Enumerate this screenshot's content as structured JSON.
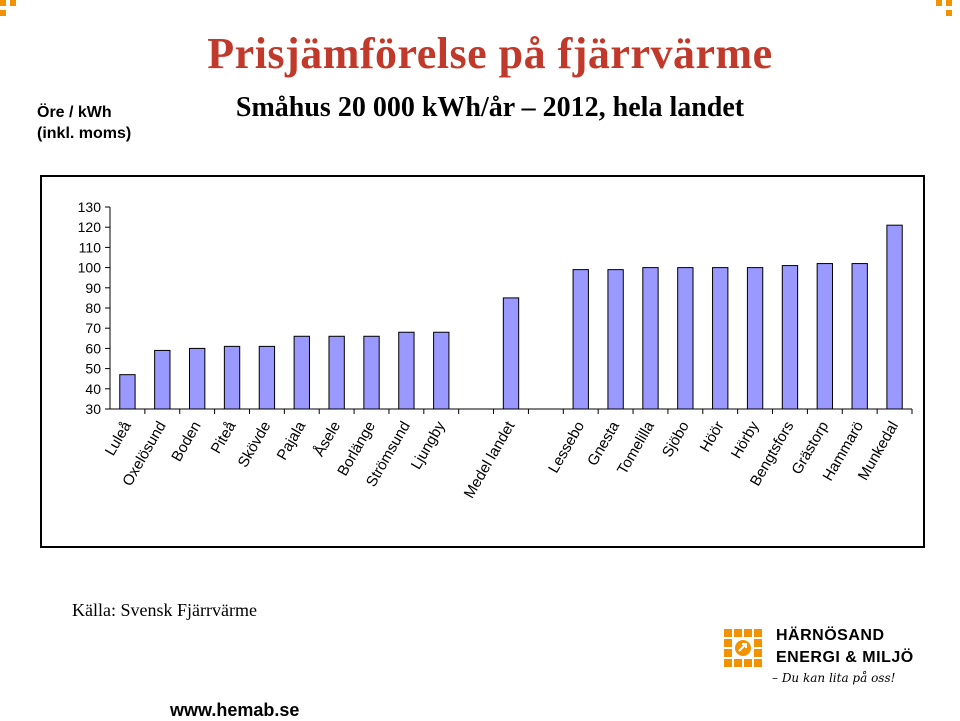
{
  "header": {
    "title": "Prisjämförelse på fjärrvärme",
    "subtitle": "Småhus 20 000 kWh/år – 2012, hela landet",
    "unit_line1": "Öre / kWh",
    "unit_line2": "(inkl. moms)"
  },
  "chart_data": {
    "type": "bar",
    "title": "Prisjämförelse på fjärrvärme",
    "subtitle": "Småhus 20 000 kWh/år – 2012, hela landet",
    "ylabel": "Öre / kWh (inkl. moms)",
    "xlabel": "",
    "ylim": [
      30,
      130
    ],
    "yticks": [
      30,
      40,
      50,
      60,
      70,
      80,
      90,
      100,
      110,
      120,
      130
    ],
    "bar_color": "#9999FF",
    "categories": [
      "Luleå",
      "Oxelösund",
      "Boden",
      "Piteå",
      "Skövde",
      "Pajala",
      "Åsele",
      "Borlänge",
      "Strömsund",
      "Ljungby",
      "",
      "Medel landet",
      "",
      "Lessebo",
      "Gnesta",
      "Tomelilla",
      "Sjöbo",
      "Höör",
      "Hörby",
      "Bengtsfors",
      "Grästorp",
      "Hammarö",
      "Munkedal"
    ],
    "values": [
      47,
      59,
      60,
      61,
      61,
      66,
      66,
      66,
      68,
      68,
      null,
      85,
      null,
      99,
      99,
      100,
      100,
      100,
      100,
      101,
      102,
      102,
      121
    ]
  },
  "footer": {
    "source": "Källa: Svensk Fjärrvärme",
    "website": "www.hemab.se"
  },
  "logo": {
    "line1": "HÄRNÖSAND",
    "line2": "ENERGI & MILJÖ",
    "tagline": "– Du kan lita på oss!",
    "color": "#F39200",
    "icon": "sun-logo-icon"
  },
  "colors": {
    "title": "#C0392B",
    "accent": "#F39200",
    "bar": "#9999FF"
  }
}
